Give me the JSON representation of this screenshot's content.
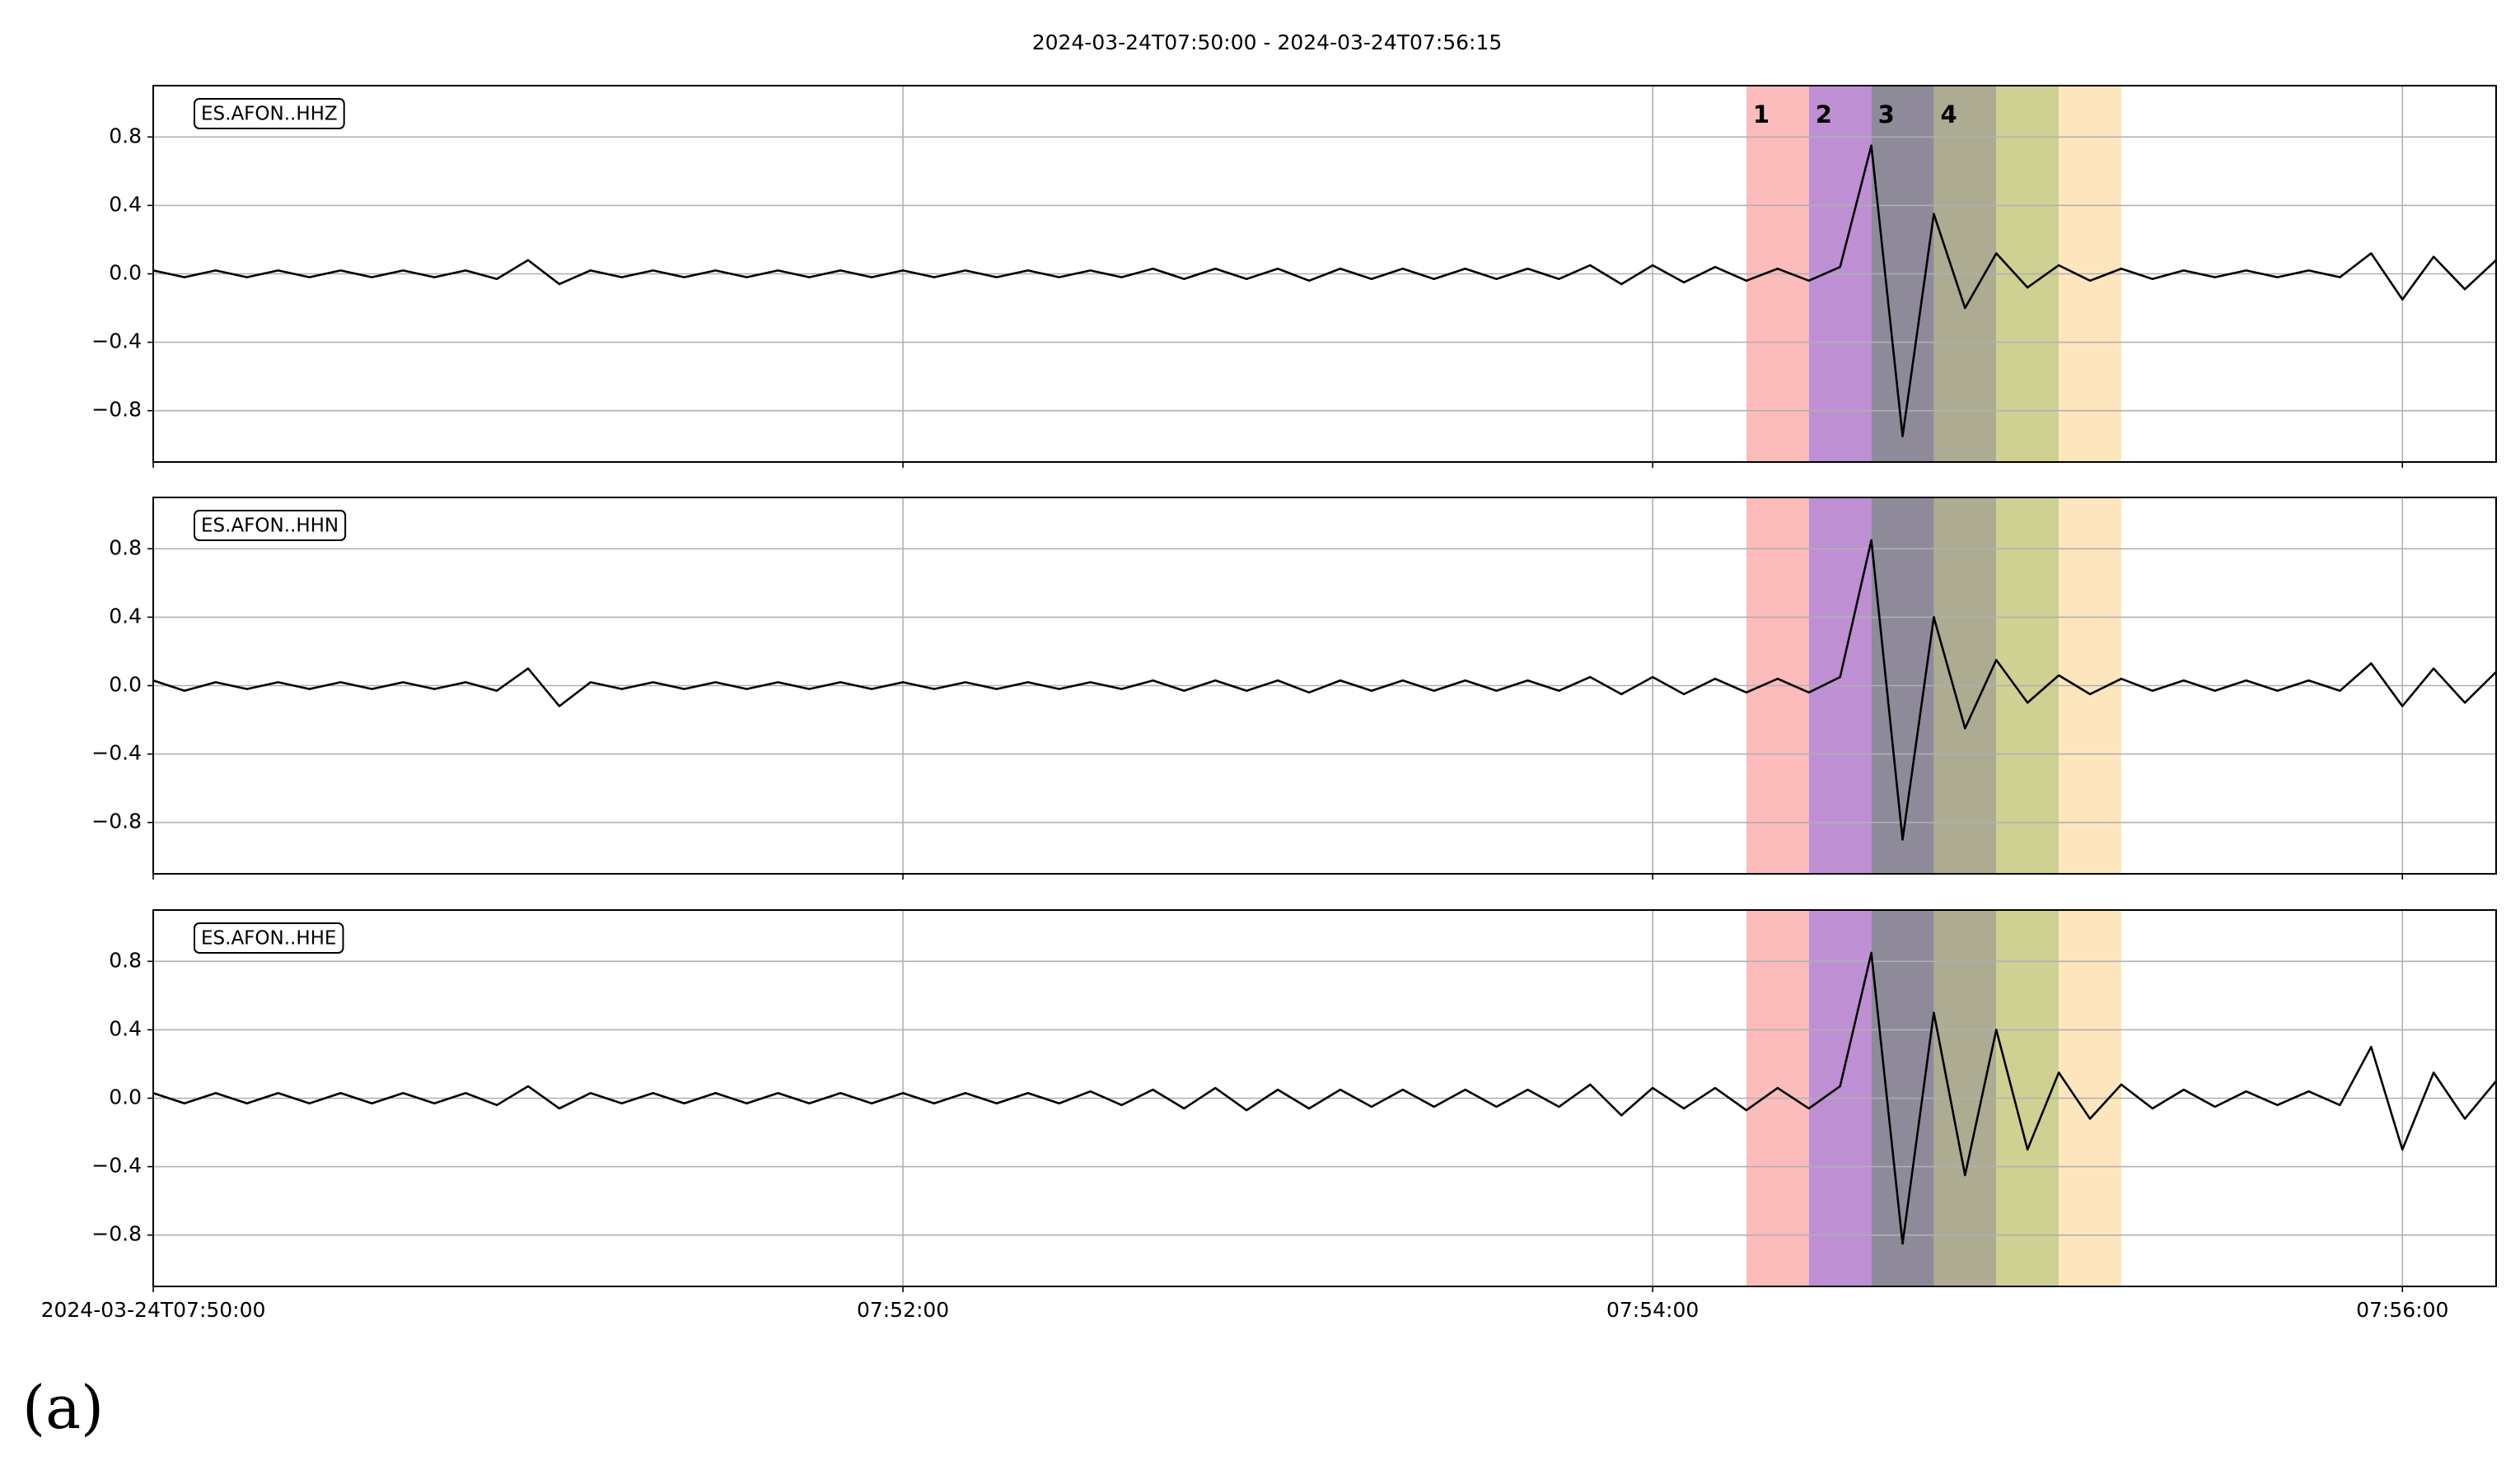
{
  "title": "2024-03-24T07:50:00  -  2024-03-24T07:56:15",
  "caption": "(a)",
  "chart_data": [
    {
      "type": "line",
      "label": "ES.AFON..HHZ",
      "x": [
        0,
        5,
        10,
        15,
        20,
        25,
        30,
        35,
        40,
        45,
        50,
        55,
        60,
        65,
        70,
        75,
        80,
        85,
        90,
        95,
        100,
        105,
        110,
        115,
        120,
        125,
        130,
        135,
        140,
        145,
        150,
        155,
        160,
        165,
        170,
        175,
        180,
        185,
        190,
        195,
        200,
        205,
        210,
        215,
        220,
        225,
        230,
        235,
        240,
        245,
        250,
        255,
        260,
        265,
        270,
        275,
        280,
        285,
        290,
        295,
        300,
        305,
        310,
        315,
        320,
        325,
        330,
        335,
        340,
        345,
        350,
        355,
        360,
        365,
        370,
        375
      ],
      "series": [
        {
          "color": "#000000",
          "values": [
            0.02,
            -0.02,
            0.02,
            -0.02,
            0.02,
            -0.02,
            0.02,
            -0.02,
            0.02,
            -0.02,
            0.02,
            -0.03,
            0.08,
            -0.06,
            0.02,
            -0.02,
            0.02,
            -0.02,
            0.02,
            -0.02,
            0.02,
            -0.02,
            0.02,
            -0.02,
            0.02,
            -0.02,
            0.02,
            -0.02,
            0.02,
            -0.02,
            0.02,
            -0.02,
            0.03,
            -0.03,
            0.03,
            -0.03,
            0.03,
            -0.04,
            0.03,
            -0.03,
            0.03,
            -0.03,
            0.03,
            -0.03,
            0.03,
            -0.03,
            0.05,
            -0.06,
            0.05,
            -0.05,
            0.04,
            -0.04,
            0.03,
            -0.04,
            0.04,
            0.75,
            -0.95,
            0.35,
            -0.2,
            0.12,
            -0.08,
            0.05,
            -0.04,
            0.03,
            -0.03,
            0.02,
            -0.02,
            0.02,
            -0.02,
            0.02,
            -0.02,
            0.12,
            -0.15,
            0.1,
            -0.09,
            0.08
          ]
        }
      ],
      "xlim": [
        0,
        375
      ],
      "xticks": [
        0,
        120,
        240,
        360
      ],
      "ylim": [
        -1.1,
        1.1
      ],
      "yticks": [
        {
          "value": -0.8,
          "label": "−0.8"
        },
        {
          "value": -0.4,
          "label": "−0.4"
        },
        {
          "value": 0,
          "label": "0.0"
        },
        0.4,
        0.8
      ],
      "grid": true,
      "spans": [
        {
          "x": [
            255,
            265
          ],
          "color": "#fdbcbc",
          "label": "1",
          "label_color": "#ff0000"
        },
        {
          "x": [
            265,
            275
          ],
          "color": "#bf8fd4",
          "label": "2",
          "label_color": "#0000ff"
        },
        {
          "x": [
            275,
            285
          ],
          "color": "#8e8a9a",
          "label": "3",
          "label_color": "#008000"
        },
        {
          "x": [
            285,
            295
          ],
          "color": "#adab91",
          "label": "4",
          "label_color": "#ffa500"
        },
        {
          "x": [
            295,
            305
          ],
          "color": "#cfd192"
        },
        {
          "x": [
            305,
            315
          ],
          "color": "#fde6bd"
        }
      ]
    },
    {
      "type": "line",
      "label": "ES.AFON..HHN",
      "x": [
        0,
        5,
        10,
        15,
        20,
        25,
        30,
        35,
        40,
        45,
        50,
        55,
        60,
        65,
        70,
        75,
        80,
        85,
        90,
        95,
        100,
        105,
        110,
        115,
        120,
        125,
        130,
        135,
        140,
        145,
        150,
        155,
        160,
        165,
        170,
        175,
        180,
        185,
        190,
        195,
        200,
        205,
        210,
        215,
        220,
        225,
        230,
        235,
        240,
        245,
        250,
        255,
        260,
        265,
        270,
        275,
        280,
        285,
        290,
        295,
        300,
        305,
        310,
        315,
        320,
        325,
        330,
        335,
        340,
        345,
        350,
        355,
        360,
        365,
        370,
        375
      ],
      "series": [
        {
          "color": "#000000",
          "values": [
            0.03,
            -0.03,
            0.02,
            -0.02,
            0.02,
            -0.02,
            0.02,
            -0.02,
            0.02,
            -0.02,
            0.02,
            -0.03,
            0.1,
            -0.12,
            0.02,
            -0.02,
            0.02,
            -0.02,
            0.02,
            -0.02,
            0.02,
            -0.02,
            0.02,
            -0.02,
            0.02,
            -0.02,
            0.02,
            -0.02,
            0.02,
            -0.02,
            0.02,
            -0.02,
            0.03,
            -0.03,
            0.03,
            -0.03,
            0.03,
            -0.04,
            0.03,
            -0.03,
            0.03,
            -0.03,
            0.03,
            -0.03,
            0.03,
            -0.03,
            0.05,
            -0.05,
            0.05,
            -0.05,
            0.04,
            -0.04,
            0.04,
            -0.04,
            0.05,
            0.85,
            -0.9,
            0.4,
            -0.25,
            0.15,
            -0.1,
            0.06,
            -0.05,
            0.04,
            -0.03,
            0.03,
            -0.03,
            0.03,
            -0.03,
            0.03,
            -0.03,
            0.13,
            -0.12,
            0.1,
            -0.1,
            0.08
          ]
        }
      ],
      "xlim": [
        0,
        375
      ],
      "xticks": [
        0,
        120,
        240,
        360
      ],
      "ylim": [
        -1.1,
        1.1
      ],
      "yticks": [
        {
          "value": -0.8,
          "label": "−0.8"
        },
        {
          "value": -0.4,
          "label": "−0.4"
        },
        {
          "value": 0,
          "label": "0.0"
        },
        0.4,
        0.8
      ],
      "grid": true,
      "spans": [
        {
          "x": [
            255,
            265
          ],
          "color": "#fdbcbc"
        },
        {
          "x": [
            265,
            275
          ],
          "color": "#bf8fd4"
        },
        {
          "x": [
            275,
            285
          ],
          "color": "#8e8a9a"
        },
        {
          "x": [
            285,
            295
          ],
          "color": "#adab91"
        },
        {
          "x": [
            295,
            305
          ],
          "color": "#cfd192"
        },
        {
          "x": [
            305,
            315
          ],
          "color": "#fde6bd"
        }
      ]
    },
    {
      "type": "line",
      "label": "ES.AFON..HHE",
      "x": [
        0,
        5,
        10,
        15,
        20,
        25,
        30,
        35,
        40,
        45,
        50,
        55,
        60,
        65,
        70,
        75,
        80,
        85,
        90,
        95,
        100,
        105,
        110,
        115,
        120,
        125,
        130,
        135,
        140,
        145,
        150,
        155,
        160,
        165,
        170,
        175,
        180,
        185,
        190,
        195,
        200,
        205,
        210,
        215,
        220,
        225,
        230,
        235,
        240,
        245,
        250,
        255,
        260,
        265,
        270,
        275,
        280,
        285,
        290,
        295,
        300,
        305,
        310,
        315,
        320,
        325,
        330,
        335,
        340,
        345,
        350,
        355,
        360,
        365,
        370,
        375
      ],
      "series": [
        {
          "color": "#000000",
          "values": [
            0.03,
            -0.03,
            0.03,
            -0.03,
            0.03,
            -0.03,
            0.03,
            -0.03,
            0.03,
            -0.03,
            0.03,
            -0.04,
            0.07,
            -0.06,
            0.03,
            -0.03,
            0.03,
            -0.03,
            0.03,
            -0.03,
            0.03,
            -0.03,
            0.03,
            -0.03,
            0.03,
            -0.03,
            0.03,
            -0.03,
            0.03,
            -0.03,
            0.04,
            -0.04,
            0.05,
            -0.06,
            0.06,
            -0.07,
            0.05,
            -0.06,
            0.05,
            -0.05,
            0.05,
            -0.05,
            0.05,
            -0.05,
            0.05,
            -0.05,
            0.08,
            -0.1,
            0.06,
            -0.06,
            0.06,
            -0.07,
            0.06,
            -0.06,
            0.07,
            0.85,
            -0.85,
            0.5,
            -0.45,
            0.4,
            -0.3,
            0.15,
            -0.12,
            0.08,
            -0.06,
            0.05,
            -0.05,
            0.04,
            -0.04,
            0.04,
            -0.04,
            0.3,
            -0.3,
            0.15,
            -0.12,
            0.1
          ]
        }
      ],
      "xlim": [
        0,
        375
      ],
      "xticks": [
        {
          "value": 0,
          "label": "2024-03-24T07:50:00"
        },
        {
          "value": 120,
          "label": "07:52:00"
        },
        {
          "value": 240,
          "label": "07:54:00"
        },
        {
          "value": 360,
          "label": "07:56:00"
        }
      ],
      "ylim": [
        -1.1,
        1.1
      ],
      "yticks": [
        {
          "value": -0.8,
          "label": "−0.8"
        },
        {
          "value": -0.4,
          "label": "−0.4"
        },
        {
          "value": 0,
          "label": "0.0"
        },
        0.4,
        0.8
      ],
      "grid": true,
      "spans": [
        {
          "x": [
            255,
            265
          ],
          "color": "#fdbcbc"
        },
        {
          "x": [
            265,
            275
          ],
          "color": "#bf8fd4"
        },
        {
          "x": [
            275,
            285
          ],
          "color": "#8e8a9a"
        },
        {
          "x": [
            285,
            295
          ],
          "color": "#adab91"
        },
        {
          "x": [
            295,
            305
          ],
          "color": "#cfd192"
        },
        {
          "x": [
            305,
            315
          ],
          "color": "#fde6bd"
        }
      ]
    }
  ]
}
